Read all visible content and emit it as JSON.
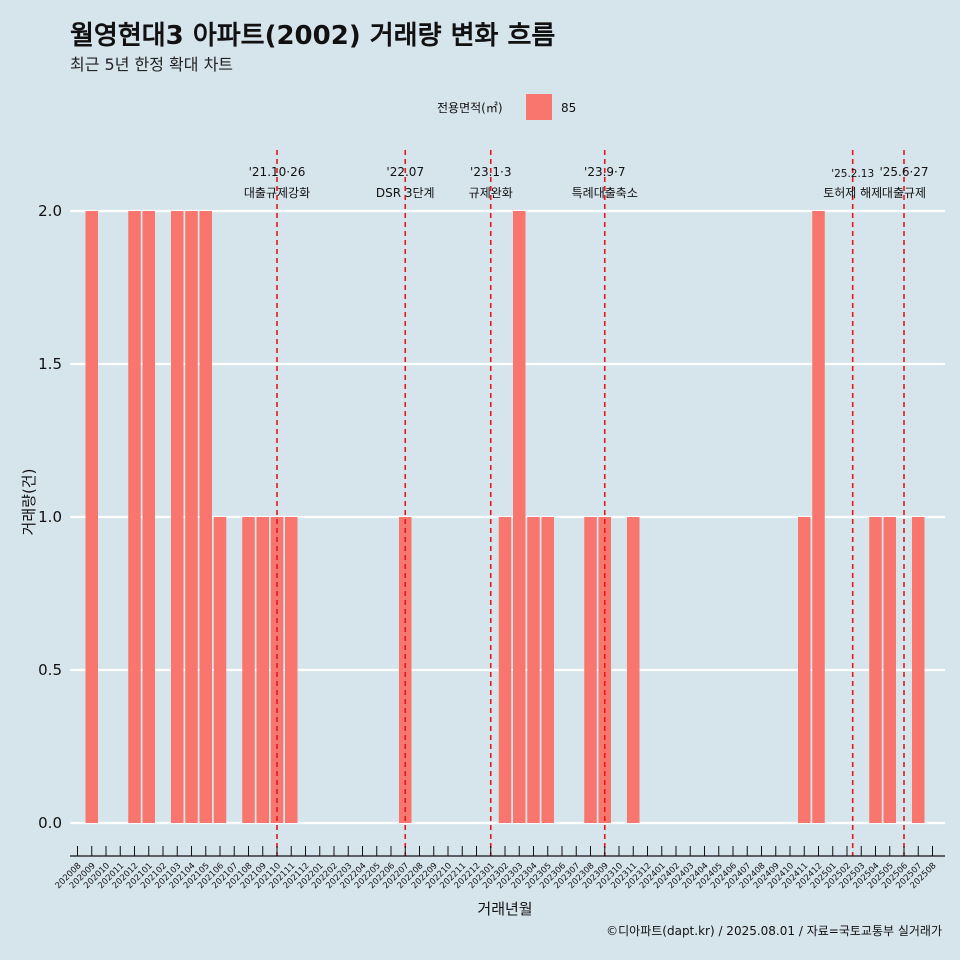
{
  "title": "월영현대3 아파트(2002) 거래량 변화 흐름",
  "subtitle": "최근 5년 한정 확대 차트",
  "caption": "©디아파트(dapt.kr) / 2025.08.01 / 자료=국토교통부 실거래가",
  "legend": {
    "title": "전용면적(㎡)",
    "items": [
      {
        "label": "85",
        "color": "#f8766d"
      }
    ]
  },
  "chart_data": {
    "type": "bar",
    "xlabel": "거래년월",
    "ylabel": "거래량(건)",
    "ylim": [
      0,
      2
    ],
    "y_ticks": [
      "0.0",
      "0.5",
      "1.0",
      "1.5",
      "2.0"
    ],
    "grid": true,
    "legend_position": "top",
    "categories": [
      "202008",
      "202009",
      "202010",
      "202011",
      "202012",
      "202101",
      "202102",
      "202103",
      "202104",
      "202105",
      "202106",
      "202107",
      "202108",
      "202109",
      "202110",
      "202111",
      "202112",
      "202201",
      "202202",
      "202203",
      "202204",
      "202205",
      "202206",
      "202207",
      "202208",
      "202209",
      "202210",
      "202211",
      "202212",
      "202301",
      "202302",
      "202303",
      "202304",
      "202305",
      "202306",
      "202307",
      "202308",
      "202309",
      "202310",
      "202311",
      "202312",
      "202401",
      "202402",
      "202403",
      "202404",
      "202405",
      "202406",
      "202407",
      "202408",
      "202409",
      "202410",
      "202411",
      "202412",
      "202501",
      "202502",
      "202503",
      "202504",
      "202505",
      "202506",
      "202507",
      "202508"
    ],
    "series": [
      {
        "name": "85",
        "color": "#f8766d",
        "values": [
          0,
          2,
          0,
          0,
          2,
          2,
          0,
          2,
          2,
          2,
          1,
          0,
          1,
          1,
          1,
          1,
          0,
          0,
          0,
          0,
          0,
          0,
          0,
          1,
          0,
          0,
          0,
          0,
          0,
          0,
          1,
          2,
          1,
          1,
          0,
          0,
          1,
          1,
          0,
          1,
          0,
          0,
          0,
          0,
          0,
          0,
          0,
          0,
          0,
          0,
          0,
          1,
          2,
          0,
          0,
          0,
          1,
          1,
          0,
          1,
          0
        ]
      }
    ],
    "events": [
      {
        "label_top": "'21.10·26",
        "label_bottom": "대출규제강화",
        "at": "202110",
        "offset": 0.0
      },
      {
        "label_top": "'22.07",
        "label_bottom": "DSR 3단계",
        "at": "202207",
        "offset": 0.0
      },
      {
        "label_top": "'23.1·3",
        "label_bottom": "규제완화",
        "at": "202301",
        "offset": 0.0
      },
      {
        "label_top": "'23.9·7",
        "label_bottom": "특례대출축소",
        "at": "202309",
        "offset": 0.0
      },
      {
        "label_top": "'25.2.13",
        "label_bottom": "토허제 해제",
        "at": "202502",
        "offset": 0.4,
        "small": true
      },
      {
        "label_top": "'25.6·27",
        "label_bottom": "대출규제",
        "at": "202506",
        "offset": 0.0
      }
    ]
  }
}
